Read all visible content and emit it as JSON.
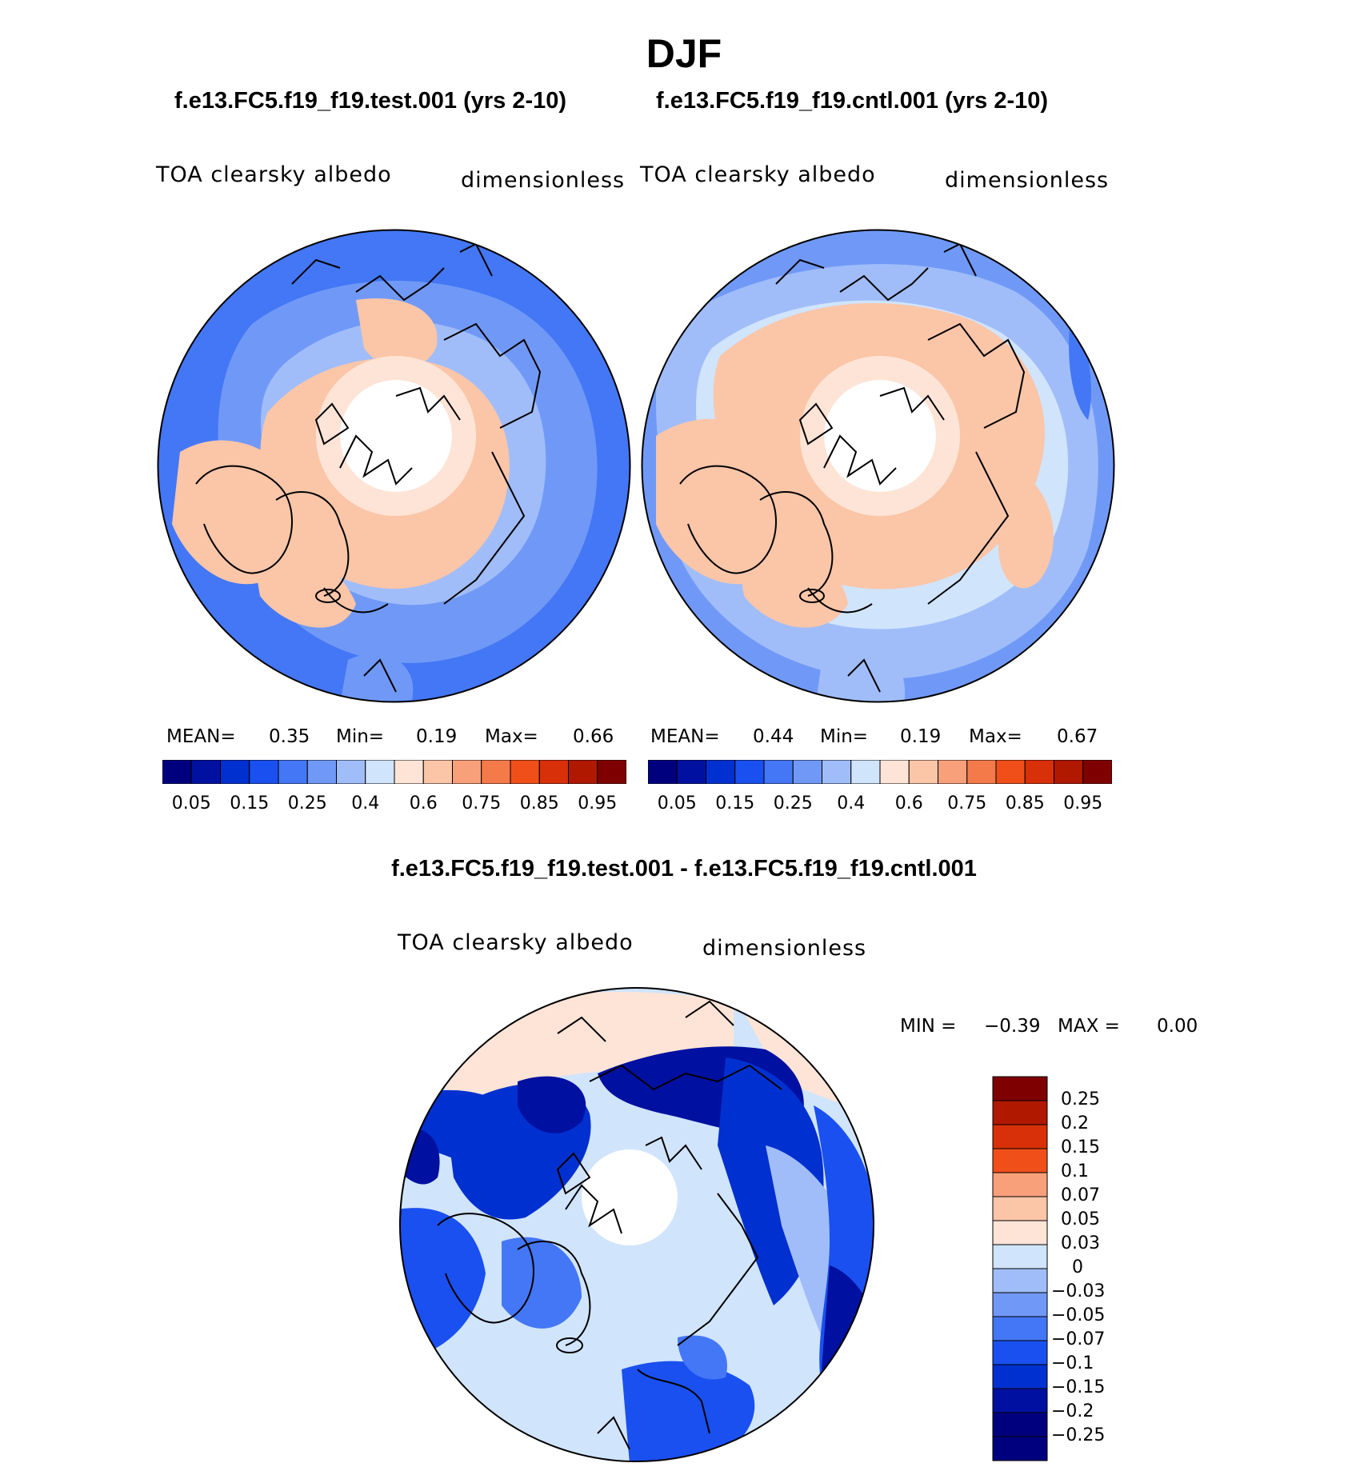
{
  "title": "DJF",
  "panels": {
    "test": {
      "case_title": "f.e13.FC5.f19_f19.test.001 (yrs 2-10)",
      "variable": "TOA clearsky albedo",
      "units": "dimensionless",
      "stats": {
        "mean_label": "MEAN=",
        "mean": "0.35",
        "min_label": "Min=",
        "min": "0.19",
        "max_label": "Max=",
        "max": "0.66"
      }
    },
    "cntl": {
      "case_title": "f.e13.FC5.f19_f19.cntl.001 (yrs 2-10)",
      "variable": "TOA clearsky albedo",
      "units": "dimensionless",
      "stats": {
        "mean_label": "MEAN=",
        "mean": "0.44",
        "min_label": "Min=",
        "min": "0.19",
        "max_label": "Max=",
        "max": "0.67"
      }
    },
    "diff": {
      "case_title": "f.e13.FC5.f19_f19.test.001 - f.e13.FC5.f19_f19.cntl.001",
      "variable": "TOA clearsky albedo",
      "units": "dimensionless",
      "stats": {
        "min_label": "MIN =",
        "min": "−0.39",
        "max_label": "MAX =",
        "max": "0.00"
      }
    }
  },
  "chart_data": [
    {
      "type": "heatmap",
      "projection": "north-polar-stereographic",
      "title": "TOA clearsky albedo",
      "units": "dimensionless",
      "colorbar_colors": [
        "#00007f",
        "#0010a0",
        "#0030d0",
        "#1a50f0",
        "#4477f5",
        "#7099f7",
        "#a0bdfa",
        "#d0e4fc",
        "#fde4d6",
        "#fbc5a8",
        "#f8a07a",
        "#f57a4a",
        "#f04f1a",
        "#d83008",
        "#b01800",
        "#7f0000"
      ],
      "colorbar_labels": [
        "0.05",
        "0.15",
        "0.25",
        "0.4",
        "0.6",
        "0.75",
        "0.85",
        "0.95"
      ]
    },
    {
      "type": "heatmap",
      "projection": "north-polar-stereographic",
      "title": "TOA clearsky albedo",
      "units": "dimensionless",
      "colorbar_colors": [
        "#00007f",
        "#0010a0",
        "#0030d0",
        "#1a50f0",
        "#4477f5",
        "#7099f7",
        "#a0bdfa",
        "#d0e4fc",
        "#fde4d6",
        "#fbc5a8",
        "#f8a07a",
        "#f57a4a",
        "#f04f1a",
        "#d83008",
        "#b01800",
        "#7f0000"
      ],
      "colorbar_labels": [
        "0.05",
        "0.15",
        "0.25",
        "0.4",
        "0.6",
        "0.75",
        "0.85",
        "0.95"
      ]
    },
    {
      "type": "heatmap",
      "projection": "north-polar-stereographic",
      "title": "TOA clearsky albedo",
      "units": "dimensionless",
      "colorbar_colors": [
        "#7f0000",
        "#b01800",
        "#d83008",
        "#f04f1a",
        "#f8a07a",
        "#fbc5a8",
        "#fde4d6",
        "#d0e4fc",
        "#a0bdfa",
        "#7099f7",
        "#4477f5",
        "#1a50f0",
        "#0030d0",
        "#0010a0",
        "#00007f"
      ],
      "colorbar_labels": [
        "0.25",
        "0.2",
        "0.15",
        "0.1",
        "0.07",
        "0.05",
        "0.03",
        "0",
        "−0.03",
        "−0.05",
        "−0.07",
        "−0.1",
        "−0.15",
        "−0.2",
        "−0.25"
      ]
    }
  ]
}
